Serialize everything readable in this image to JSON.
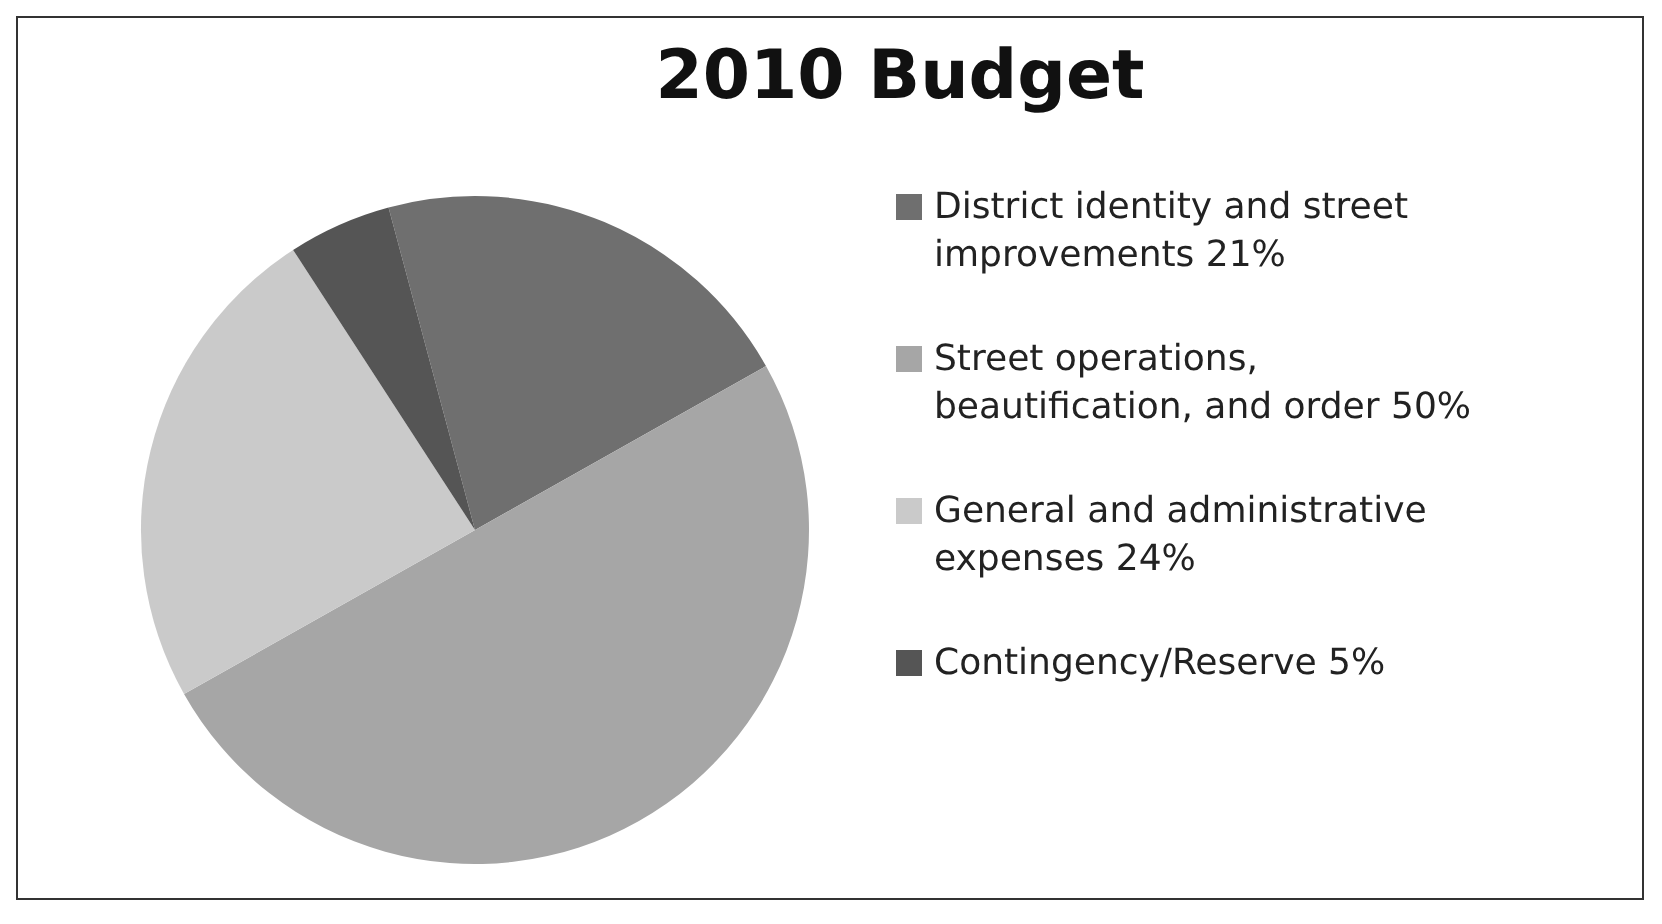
{
  "chart_data": {
    "type": "pie",
    "title": "2010 Budget",
    "legend": "right",
    "categories": [
      "District identity and street improvements 21%",
      "Street operations, beautification, and order 50%",
      "General and administrative expenses 24%",
      "Contingency/Reserve 5%"
    ],
    "values": [
      21,
      50,
      24,
      5
    ],
    "colors": [
      "#6f6f6f",
      "#a6a6a6",
      "#cacaca",
      "#555555"
    ]
  }
}
